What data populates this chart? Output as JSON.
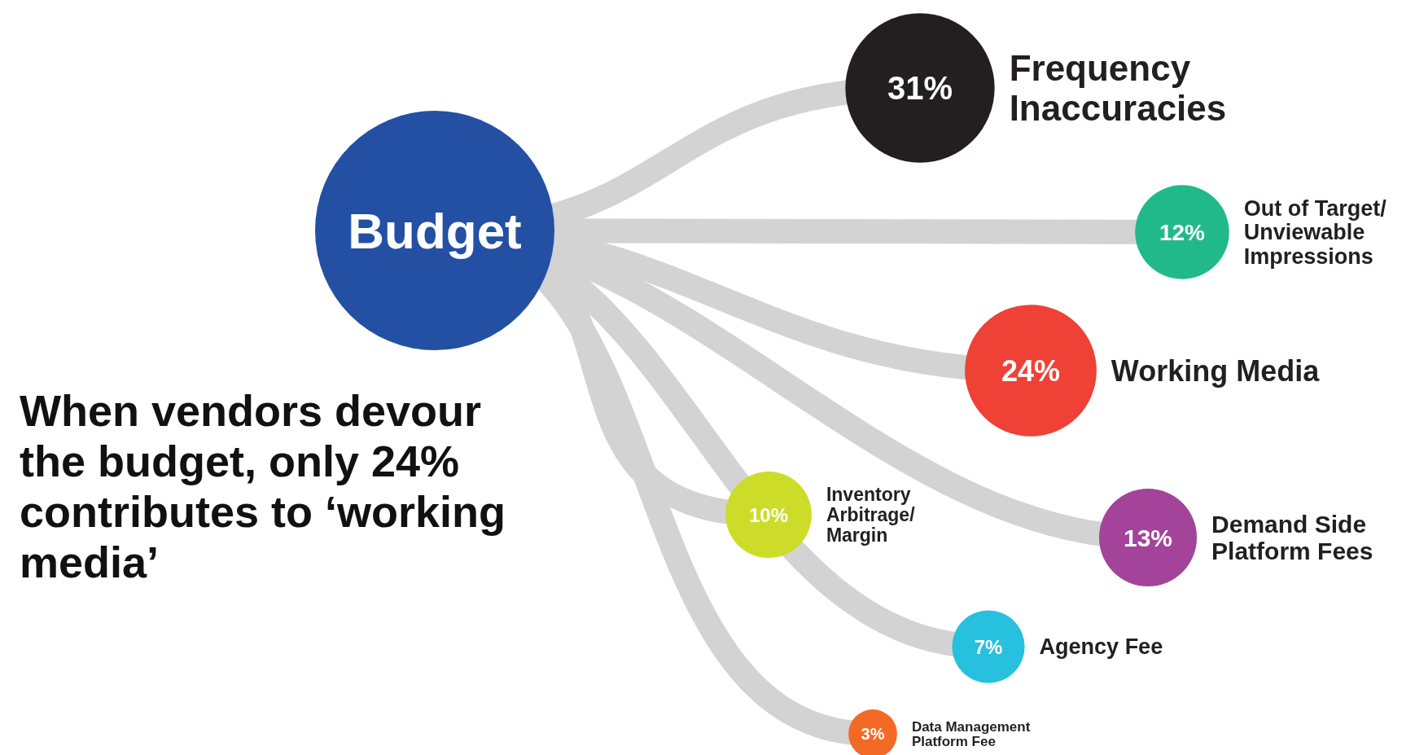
{
  "chart_data": {
    "type": "other",
    "title": "When vendors devour the budget, only 24% contributes to ‘working media’",
    "annotations": [
      "Budget"
    ],
    "categories": [
      "Frequency Inaccuracies",
      "Out of Target/ Unviewable Impressions",
      "Working Media",
      "Inventory Arbitrage/ Margin",
      "Demand Side Platform Fees",
      "Agency Fee",
      "Data Management Platform Fee"
    ],
    "values": [
      31,
      12,
      24,
      10,
      13,
      7,
      3
    ],
    "value_labels": [
      "31%",
      "12%",
      "24%",
      "10%",
      "13%",
      "7%",
      "3%"
    ],
    "colors": [
      "#231f20",
      "#22b98a",
      "#ef4136",
      "#cddc29",
      "#a3449a",
      "#27c0de",
      "#f26a25"
    ]
  }
}
